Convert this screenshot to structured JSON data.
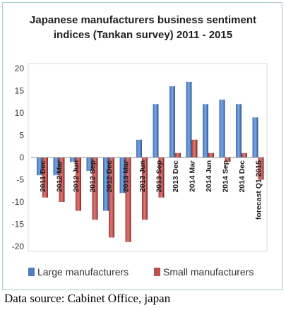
{
  "chart_data": {
    "type": "bar",
    "title_lines": [
      "Japanese manufacturers business sentiment",
      "indices  (Tankan survey) 2011 - 2015"
    ],
    "categories": [
      "2011 Dec",
      "2012 Mar",
      "2012 Jun",
      "2012 Sep",
      "2012 Dec",
      "2013 Mar",
      "2013 Jun",
      "2013 Sep",
      "2013 Dec",
      "2014 Mar",
      "2014 Jun",
      "2014 Sep",
      "2014 Dec",
      "forecast Q1 2015"
    ],
    "series": [
      {
        "name": "Large manufacturers",
        "color": "#4a7ec4",
        "values": [
          -4,
          -4,
          -1,
          -3,
          -12,
          -8,
          4,
          12,
          16,
          17,
          12,
          13,
          12,
          9
        ]
      },
      {
        "name": "Small manufacturers",
        "color": "#c0504d",
        "values": [
          -9,
          -10,
          -12,
          -14,
          -18,
          -19,
          -14,
          -9,
          1,
          4,
          1,
          -1,
          1,
          -5
        ]
      }
    ],
    "yticks": [
      20,
      15,
      10,
      5,
      0,
      -5,
      -10,
      -15,
      -20
    ],
    "ylim": [
      -20,
      20
    ],
    "grid": false,
    "legend_position": "bottom"
  },
  "source_text": "Data source: Cabinet Office, japan"
}
